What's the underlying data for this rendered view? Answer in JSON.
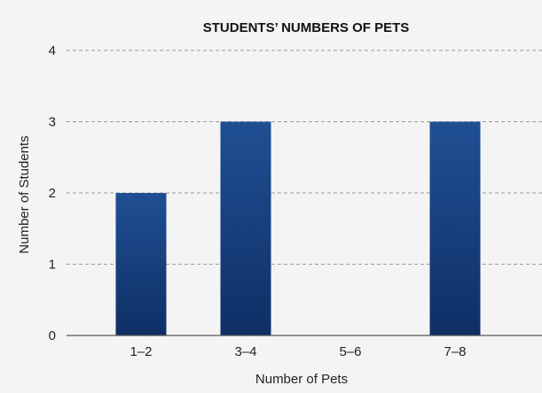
{
  "chart_data": {
    "type": "bar",
    "title": "STUDENTS’ NUMBERS OF PETS",
    "xlabel": "Number of Pets",
    "ylabel": "Number of Students",
    "categories": [
      "1–2",
      "3–4",
      "5–6",
      "7–8"
    ],
    "values": [
      2,
      3,
      0,
      3
    ],
    "ylim": [
      0,
      4
    ],
    "yticks": [
      "0",
      "1",
      "2",
      "3",
      "4"
    ],
    "grid": true,
    "legend": "none",
    "colors": {
      "bar": "#1c4a8c",
      "bar_dark": "#0f2f66",
      "background": "#f4f4f4"
    }
  }
}
